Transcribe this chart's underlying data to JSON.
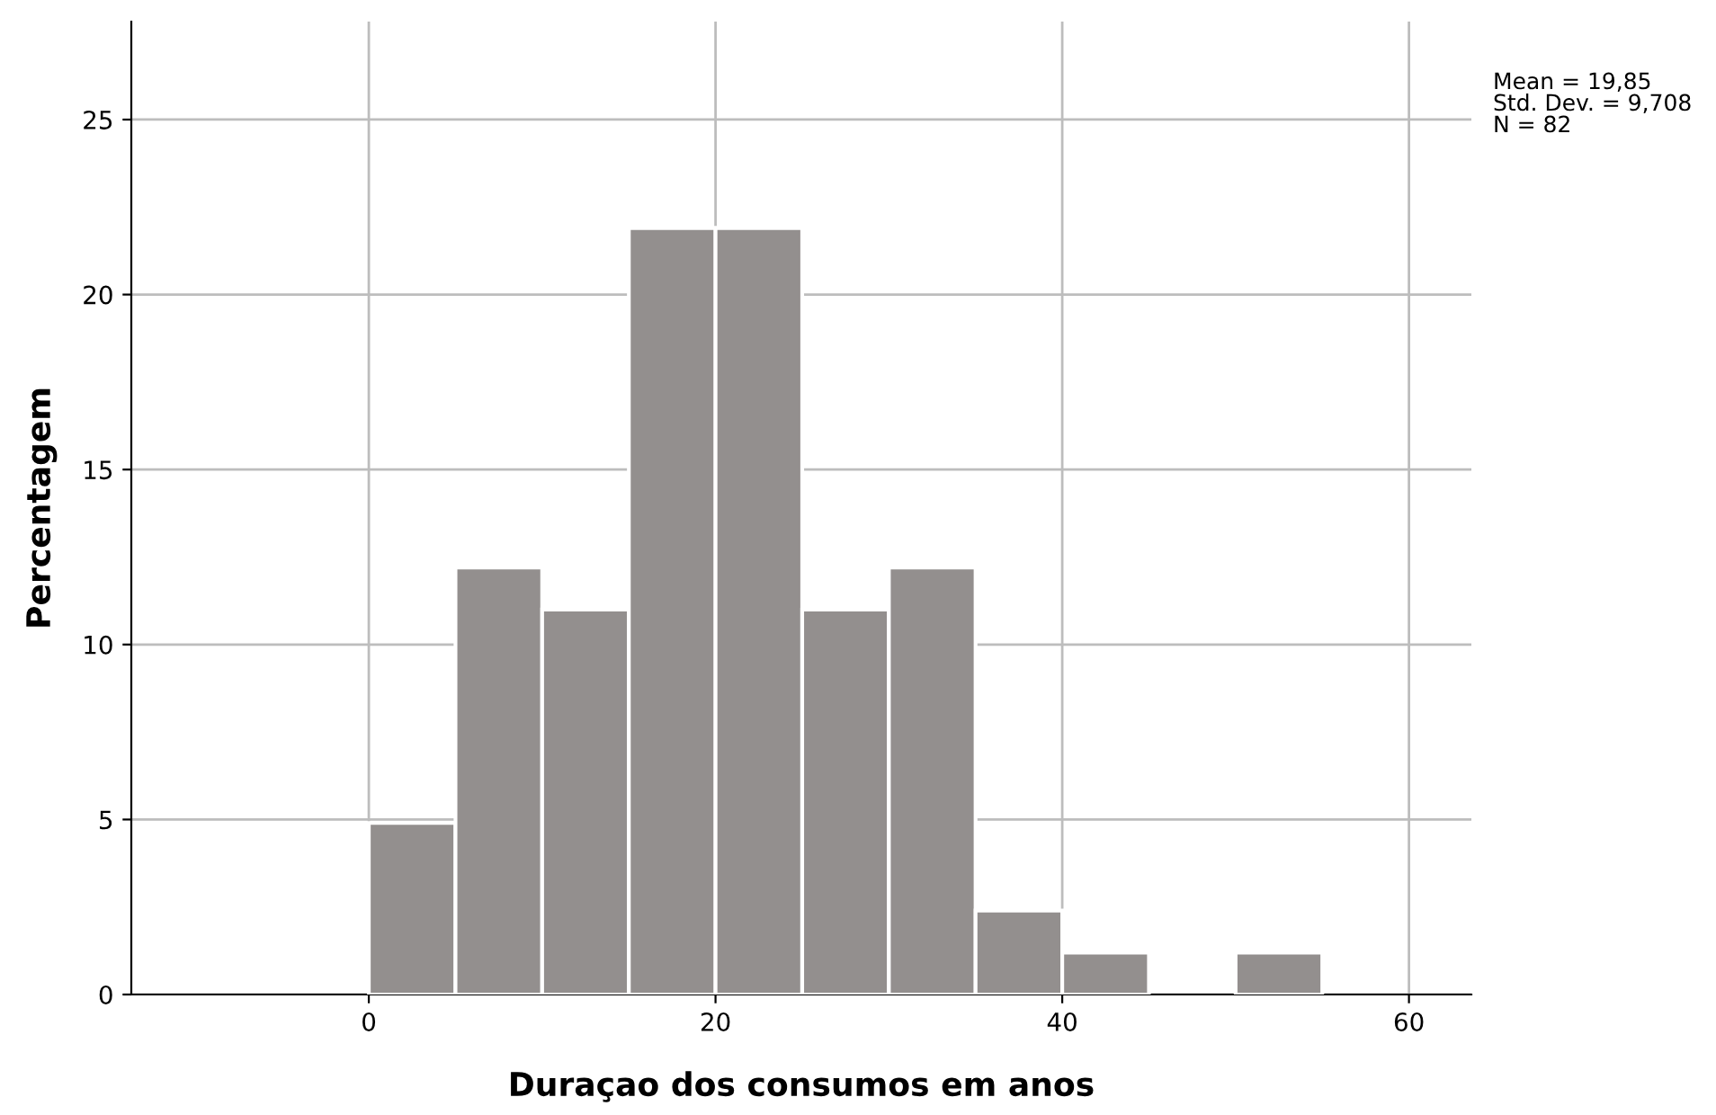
{
  "chart_data": {
    "type": "histogram",
    "xlabel": "Duraçao dos consumos em anos",
    "ylabel": "Percentagem",
    "bins": [
      0,
      5,
      10,
      15,
      20,
      25,
      30,
      35,
      40,
      45,
      50,
      55
    ],
    "values": [
      4.9,
      12.2,
      11.0,
      21.9,
      21.9,
      11.0,
      12.2,
      2.4,
      1.2,
      0,
      1.2
    ],
    "color": "#938f8e",
    "xlim": [
      -13.7,
      63.6
    ],
    "xticks": [
      0,
      20,
      40,
      60
    ],
    "ylim": [
      0,
      27.8
    ],
    "yticks": [
      0,
      5,
      10,
      15,
      20,
      25
    ],
    "grid": true,
    "annotations": [
      "Mean = 19,85",
      "Std. Dev. = 9,708",
      "N = 82"
    ]
  }
}
